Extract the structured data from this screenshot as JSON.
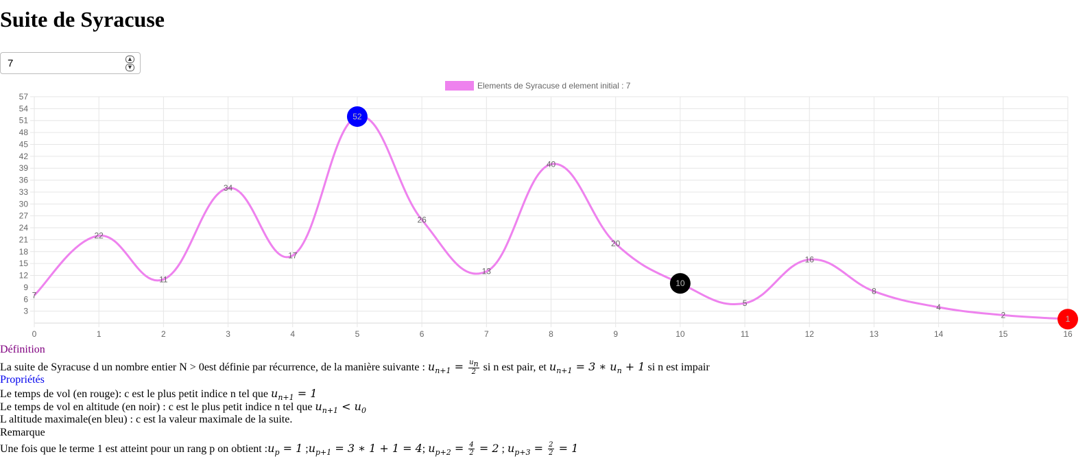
{
  "title": "Suite de Syracuse",
  "input": {
    "value": "7"
  },
  "chart_data": {
    "type": "line",
    "legend": {
      "label": "Elements de Syracuse d element initial : 7",
      "position": "top",
      "color": "#ee82ee"
    },
    "x": [
      0,
      1,
      2,
      3,
      4,
      5,
      6,
      7,
      8,
      9,
      10,
      11,
      12,
      13,
      14,
      15,
      16
    ],
    "series": [
      {
        "name": "Elements de Syracuse d element initial : 7",
        "values": [
          7,
          22,
          11,
          34,
          17,
          52,
          26,
          13,
          40,
          20,
          10,
          5,
          16,
          8,
          4,
          2,
          1
        ],
        "color": "#ee82ee"
      }
    ],
    "highlights": [
      {
        "index": 5,
        "value": 52,
        "color": "#0000ff",
        "meaning": "altitude maximale"
      },
      {
        "index": 10,
        "value": 10,
        "color": "#000000",
        "meaning": "temps de vol en altitude"
      },
      {
        "index": 16,
        "value": 1,
        "color": "#ff0000",
        "meaning": "temps de vol"
      }
    ],
    "x_ticks": [
      "0",
      "1",
      "2",
      "3",
      "4",
      "5",
      "6",
      "7",
      "8",
      "9",
      "10",
      "11",
      "12",
      "13",
      "14",
      "15",
      "16"
    ],
    "y_ticks": [
      3,
      6,
      9,
      12,
      15,
      18,
      21,
      24,
      27,
      30,
      33,
      36,
      39,
      42,
      45,
      48,
      51,
      54,
      57
    ],
    "ylim": [
      0,
      57
    ],
    "xlim": [
      0,
      16
    ],
    "grid": true,
    "xlabel": "",
    "ylabel": ""
  },
  "definition": {
    "heading": "Définition",
    "text_before": "La suite de Syracuse d un nombre entier N > 0est définie par récurrence, de la manière suivante :",
    "text_middle": "si n est pair, et",
    "text_after": "si n est impair"
  },
  "properties": {
    "heading": "Propriétés",
    "line1": "Le temps de vol (en rouge): c est le plus petit indice n tel que",
    "line2": "Le temps de vol en altitude (en noir) : c est le plus petit indice n tel que",
    "line3": "L altitude maximale(en bleu) : c est la valeur maximale de la suite."
  },
  "remark": {
    "heading": "Remarque",
    "text": "Une fois que le terme 1 est atteint pour un rang p on obtient :"
  }
}
